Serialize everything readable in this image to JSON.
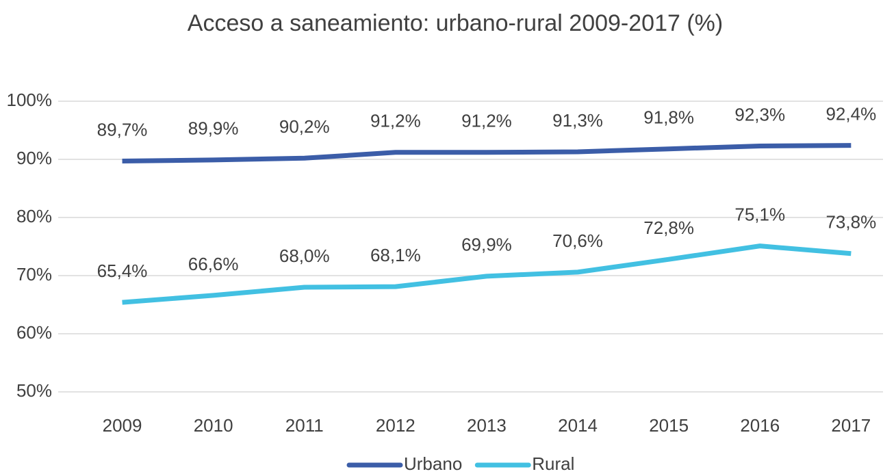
{
  "chart_data": {
    "type": "line",
    "title": "Acceso a saneamiento: urbano-rural 2009-2017 (%)",
    "categories": [
      "2009",
      "2010",
      "2011",
      "2012",
      "2013",
      "2014",
      "2015",
      "2016",
      "2017"
    ],
    "series": [
      {
        "name": "Urbano",
        "color": "#3b5da8",
        "values": [
          89.7,
          89.9,
          90.2,
          91.2,
          91.2,
          91.3,
          91.8,
          92.3,
          92.4
        ],
        "value_labels": [
          "89,7%",
          "89,9%",
          "90,2%",
          "91,2%",
          "91,2%",
          "91,3%",
          "91,8%",
          "92,3%",
          "92,4%"
        ]
      },
      {
        "name": "Rural",
        "color": "#42c0e2",
        "values": [
          65.4,
          66.6,
          68.0,
          68.1,
          69.9,
          70.6,
          72.8,
          75.1,
          73.8
        ],
        "value_labels": [
          "65,4%",
          "66,6%",
          "68,0%",
          "68,1%",
          "69,9%",
          "70,6%",
          "72,8%",
          "75,1%",
          "73,8%"
        ]
      }
    ],
    "ylim": [
      50,
      100
    ],
    "yticks": [
      {
        "value": 50,
        "label": "50%"
      },
      {
        "value": 60,
        "label": "60%"
      },
      {
        "value": 70,
        "label": "70%"
      },
      {
        "value": 80,
        "label": "80%"
      },
      {
        "value": 90,
        "label": "90%"
      },
      {
        "value": 100,
        "label": "100%"
      }
    ],
    "grid": true,
    "legend": "bottom"
  }
}
